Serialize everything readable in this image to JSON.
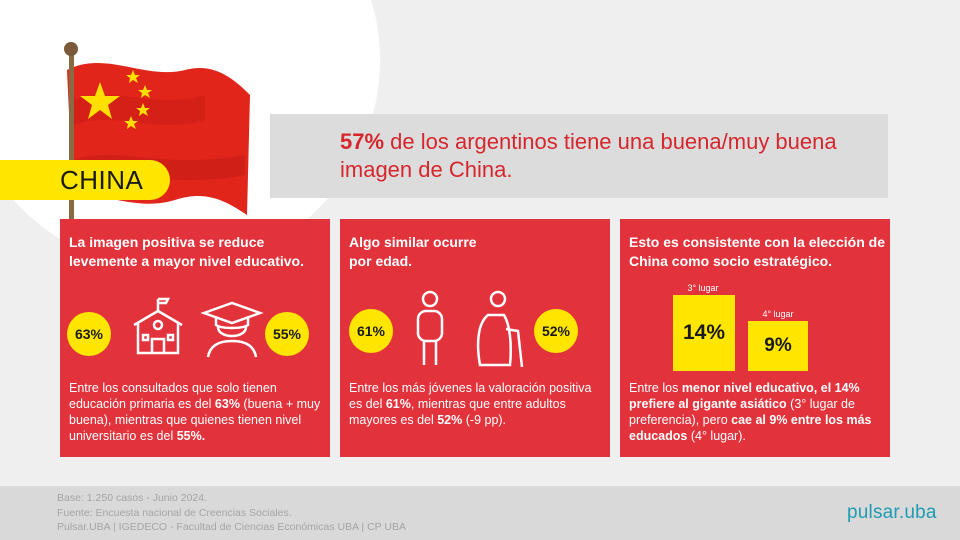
{
  "country": "CHINA",
  "headline": {
    "highlight": "57%",
    "text": " de los argentinos tiene una buena/muy buena imagen de China."
  },
  "panels": [
    {
      "title": "La imagen positiva se reduce levemente a mayor nivel educativo.",
      "left_pct": "63%",
      "right_pct": "55%",
      "icons": [
        "school-icon",
        "graduate-icon"
      ],
      "body": {
        "t1": "Entre los consultados que solo tienen educación primaria es del ",
        "b1": "63%",
        "t2": " (buena + muy buena), mientras que quienes tienen nivel universitario es del ",
        "b2": "55%."
      }
    },
    {
      "title": "Algo similar ocurre por edad.",
      "left_pct": "61%",
      "right_pct": "52%",
      "icons": [
        "young-person-icon",
        "elderly-person-icon"
      ],
      "body": {
        "t1": "Entre los más jóvenes la valoración positiva es del ",
        "b1": "61%",
        "t2": ", mientras que entre adultos mayores es del ",
        "b2": "52%",
        "t3": " (-9 pp)."
      }
    },
    {
      "title": "Esto es consistente con la elección de China como socio estratégico.",
      "bars": [
        {
          "label": "3° lugar",
          "value": "14%"
        },
        {
          "label": "4° lugar",
          "value": "9%"
        }
      ],
      "body": {
        "t1": "Entre los ",
        "b1": "menor nivel educativo, el 14% prefiere al gigante asiático",
        "t2": " (3° lugar de preferencia), pero ",
        "b2": "cae al 9% entre los más educados",
        "t3": " (4° lugar)."
      }
    }
  ],
  "footer": {
    "line1": "Base: 1.250 casos - Junio 2024.",
    "line2": "Fuente: Encuesta nacional de Creencias Sociales.",
    "line3": "Pulsar.UBA | IGEDECO - Facultad de Ciencias Económicas UBA | CP UBA"
  },
  "logo": "pulsar.uba",
  "colors": {
    "red": "#e2323b",
    "yellow": "#ffe600",
    "headline_red": "#d7262d",
    "logo_blue": "#1f9bb4"
  }
}
